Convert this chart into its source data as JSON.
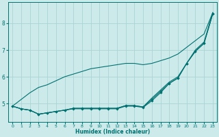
{
  "xlabel": "Humidex (Indice chaleur)",
  "bg_color": "#cceaea",
  "grid_color": "#aad4d4",
  "line_color": "#007070",
  "x": [
    0,
    1,
    2,
    3,
    4,
    5,
    6,
    7,
    8,
    9,
    10,
    11,
    12,
    13,
    14,
    15,
    16,
    17,
    18,
    19,
    20,
    21,
    22,
    23
  ],
  "series": [
    [
      4.9,
      4.8,
      4.75,
      4.6,
      4.65,
      4.7,
      4.75,
      4.8,
      4.8,
      4.8,
      4.8,
      4.8,
      4.8,
      4.9,
      4.9,
      4.85,
      5.1,
      5.4,
      5.75,
      5.95,
      6.5,
      6.95,
      7.25,
      8.35
    ],
    [
      4.9,
      4.8,
      4.75,
      4.6,
      4.65,
      4.7,
      4.75,
      4.82,
      4.82,
      4.82,
      4.82,
      4.82,
      4.82,
      4.92,
      4.92,
      4.87,
      5.15,
      5.45,
      5.75,
      5.95,
      6.5,
      6.95,
      7.25,
      8.35
    ],
    [
      4.9,
      4.8,
      4.75,
      4.6,
      4.65,
      4.7,
      4.75,
      4.82,
      4.82,
      4.82,
      4.82,
      4.82,
      4.82,
      4.92,
      4.92,
      4.87,
      5.2,
      5.5,
      5.8,
      6.0,
      6.5,
      7.0,
      7.3,
      8.4
    ],
    [
      4.9,
      5.15,
      5.4,
      5.6,
      5.7,
      5.85,
      6.0,
      6.1,
      6.2,
      6.3,
      6.35,
      6.4,
      6.45,
      6.5,
      6.5,
      6.45,
      6.5,
      6.6,
      6.7,
      6.85,
      7.1,
      7.35,
      7.6,
      8.4
    ]
  ],
  "has_markers": [
    true,
    true,
    false,
    false
  ],
  "marker_x": [
    0,
    1,
    2,
    3,
    4,
    5,
    6,
    7,
    8,
    9,
    10,
    11,
    12,
    13,
    14,
    15,
    16,
    17,
    18,
    19,
    20,
    21,
    22,
    23
  ],
  "ylim": [
    4.3,
    8.8
  ],
  "xlim": [
    -0.5,
    23.5
  ],
  "yticks": [
    5,
    6,
    7,
    8
  ],
  "xticks": [
    0,
    1,
    2,
    3,
    4,
    5,
    6,
    7,
    8,
    9,
    10,
    11,
    12,
    13,
    14,
    15,
    16,
    17,
    18,
    19,
    20,
    21,
    22,
    23
  ]
}
